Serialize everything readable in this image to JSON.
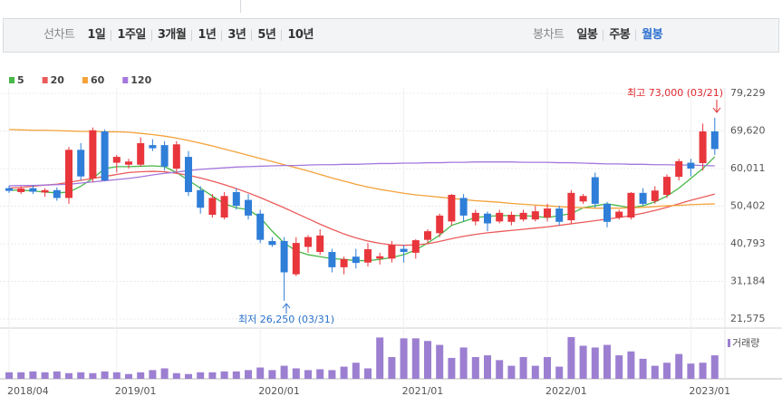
{
  "tabs": {
    "line_label": "선차트",
    "line_periods": [
      "1일",
      "1주일",
      "3개월",
      "1년",
      "3년",
      "5년",
      "10년"
    ],
    "candle_label": "봉차트",
    "candle_periods": [
      "일봉",
      "주봉",
      "월봉"
    ],
    "selected": "월봉",
    "selected_color": "#2c6fcf"
  },
  "chart_data": {
    "type": "candlestick",
    "categories": [
      "2018/04",
      null,
      null,
      null,
      null,
      null,
      null,
      null,
      null,
      "2019/01",
      null,
      null,
      null,
      null,
      null,
      null,
      null,
      null,
      null,
      null,
      null,
      "2020/01",
      null,
      null,
      null,
      null,
      null,
      null,
      null,
      null,
      null,
      null,
      null,
      "2021/01",
      null,
      null,
      null,
      null,
      null,
      null,
      null,
      null,
      null,
      null,
      null,
      "2022/01",
      null,
      null,
      null,
      null,
      null,
      null,
      null,
      null,
      null,
      null,
      null,
      "2023/01",
      null,
      null
    ],
    "open": [
      55000,
      54000,
      55000,
      53900,
      54500,
      52500,
      64800,
      57500,
      69500,
      61500,
      61000,
      61000,
      66000,
      66000,
      60000,
      63000,
      54500,
      48200,
      47500,
      54000,
      52000,
      48500,
      41500,
      41500,
      33000,
      40000,
      38700,
      38700,
      34800,
      37500,
      36000,
      37000,
      37000,
      39500,
      38500,
      41800,
      43500,
      46500,
      52500,
      46500,
      48500,
      46500,
      46400,
      47000,
      47000,
      47500,
      49800,
      46800,
      51600,
      57800,
      51000,
      47500,
      47500,
      53800,
      51700,
      53300,
      57900,
      61500,
      61400,
      69500
    ],
    "high": [
      55600,
      55500,
      55800,
      55000,
      55200,
      65500,
      66500,
      70500,
      70000,
      63500,
      62500,
      68000,
      67500,
      67000,
      67000,
      64500,
      55500,
      53500,
      54000,
      55000,
      53500,
      49500,
      42500,
      42500,
      42500,
      43000,
      44500,
      39500,
      37500,
      39500,
      41000,
      38500,
      41500,
      40500,
      42000,
      44500,
      48500,
      53500,
      53500,
      49500,
      49000,
      49500,
      49000,
      49500,
      50500,
      51000,
      50500,
      54500,
      53500,
      59000,
      51500,
      49500,
      54000,
      55000,
      55500,
      58500,
      62500,
      62500,
      71500,
      73000
    ],
    "low": [
      53800,
      53500,
      53500,
      52800,
      51800,
      51000,
      57000,
      56500,
      56800,
      59000,
      60000,
      60500,
      64500,
      59500,
      59000,
      53000,
      48500,
      47500,
      47000,
      49500,
      47000,
      41000,
      40000,
      26250,
      32500,
      38500,
      38000,
      33500,
      33000,
      34500,
      35000,
      35500,
      36000,
      36000,
      37000,
      41000,
      42500,
      45500,
      46500,
      45500,
      44000,
      46000,
      45500,
      46500,
      46500,
      46500,
      45500,
      46000,
      51000,
      50000,
      45000,
      47000,
      47000,
      50500,
      51000,
      52500,
      57000,
      58000,
      59500,
      63500
    ],
    "close": [
      54300,
      54900,
      54100,
      54500,
      52500,
      64800,
      58000,
      69800,
      57000,
      63000,
      61800,
      66500,
      65200,
      60500,
      66200,
      54000,
      50000,
      52500,
      53000,
      50500,
      48000,
      41800,
      40500,
      33500,
      41000,
      42500,
      42900,
      34800,
      36900,
      35900,
      39400,
      37600,
      40500,
      38700,
      41700,
      44000,
      48000,
      53300,
      48000,
      48700,
      46000,
      48700,
      48200,
      48700,
      49100,
      49800,
      46400,
      53800,
      53000,
      51000,
      46400,
      49000,
      53800,
      51000,
      54400,
      57900,
      61900,
      60000,
      69500,
      65000
    ],
    "up_color": "#e8363c",
    "down_color": "#2f7ed8",
    "series": [
      {
        "name": "5",
        "color": "#48b848",
        "values": [
          54500,
          54500,
          54300,
          54000,
          53800,
          54000,
          55500,
          57500,
          60000,
          60500,
          60500,
          60600,
          60700,
          60500,
          59000,
          57000,
          55000,
          53000,
          51000,
          50000,
          49500,
          47500,
          44000,
          41000,
          39000,
          38000,
          37500,
          37000,
          36800,
          36500,
          36500,
          36800,
          37300,
          38000,
          39200,
          41000,
          43000,
          45500,
          46500,
          47500,
          47800,
          48000,
          48000,
          48000,
          47800,
          47500,
          48000,
          48500,
          50000,
          50500,
          51000,
          50500,
          50000,
          50500,
          51500,
          53000,
          55000,
          57500,
          60000,
          63000
        ]
      },
      {
        "name": "20",
        "color": "#ec5b5b",
        "values": [
          55000,
          55200,
          55500,
          55800,
          56000,
          56500,
          57000,
          57500,
          58000,
          58500,
          59000,
          59200,
          59300,
          59200,
          58800,
          58300,
          57600,
          56800,
          55900,
          54900,
          53800,
          52600,
          51300,
          50000,
          48600,
          47200,
          45800,
          44500,
          43300,
          42300,
          41500,
          40900,
          40500,
          40400,
          40500,
          40800,
          41400,
          42100,
          42700,
          43200,
          43600,
          43900,
          44200,
          44500,
          44800,
          45100,
          45500,
          45900,
          46300,
          46700,
          47100,
          47500,
          48000,
          48600,
          49300,
          50100,
          51000,
          51900,
          52700,
          53500
        ]
      },
      {
        "name": "60",
        "color": "#f4a23a",
        "values": [
          70000,
          69900,
          69800,
          69800,
          69700,
          69600,
          69500,
          69500,
          69400,
          69400,
          69300,
          69000,
          68700,
          68300,
          67800,
          67200,
          66500,
          65800,
          65000,
          64200,
          63400,
          62600,
          61800,
          61000,
          60200,
          59400,
          58500,
          57600,
          56800,
          56000,
          55300,
          54700,
          54200,
          53700,
          53300,
          53000,
          52700,
          52400,
          52100,
          51800,
          51600,
          51400,
          51100,
          50900,
          50700,
          50500,
          50300,
          50100,
          50000,
          49900,
          49900,
          49900,
          50000,
          50100,
          50300,
          50500,
          50600,
          50800,
          50900,
          51000
        ]
      },
      {
        "name": "120",
        "color": "#a477dd",
        "values": [
          55600,
          55700,
          55700,
          55800,
          55900,
          56000,
          56300,
          56600,
          56900,
          57200,
          57500,
          57900,
          58400,
          58800,
          59100,
          59500,
          59800,
          60000,
          60200,
          60400,
          60500,
          60600,
          60700,
          60800,
          60800,
          60900,
          61000,
          61000,
          61100,
          61100,
          61200,
          61300,
          61300,
          61400,
          61400,
          61500,
          61500,
          61600,
          61600,
          61700,
          61700,
          61700,
          61700,
          61600,
          61600,
          61600,
          61500,
          61500,
          61400,
          61300,
          61200,
          61200,
          61100,
          61100,
          61000,
          61000,
          60900,
          60900,
          60800,
          60700
        ]
      }
    ],
    "ylim": [
      19723,
      80618
    ],
    "yticks": [
      {
        "value": 79229,
        "label": "79,229"
      },
      {
        "value": 69620,
        "label": "69,620"
      },
      {
        "value": 60011,
        "label": "60,011"
      },
      {
        "value": 50402,
        "label": "50,402"
      },
      {
        "value": 40793,
        "label": "40,793"
      },
      {
        "value": 31184,
        "label": "31,184"
      },
      {
        "value": 21575,
        "label": "21,575"
      }
    ],
    "grid": true,
    "annotations": [
      {
        "text": "최고 73,000 (03/21)",
        "color": "#e0282e"
      },
      {
        "text": "최저 26,250 (03/31)",
        "color": "#2a72cc"
      }
    ],
    "volume": {
      "name": "거래량",
      "color": "#9c7fd1",
      "ylim": [
        0,
        100
      ],
      "values": [
        15,
        15,
        17,
        15,
        17,
        13,
        15,
        13,
        17,
        15,
        11,
        15,
        20,
        24,
        13,
        11,
        15,
        15,
        17,
        17,
        20,
        26,
        20,
        30,
        24,
        20,
        22,
        20,
        28,
        37,
        24,
        95,
        50,
        93,
        93,
        87,
        78,
        48,
        72,
        50,
        54,
        43,
        30,
        50,
        30,
        50,
        28,
        96,
        76,
        72,
        78,
        54,
        63,
        46,
        30,
        37,
        57,
        35,
        37,
        54
      ]
    }
  }
}
